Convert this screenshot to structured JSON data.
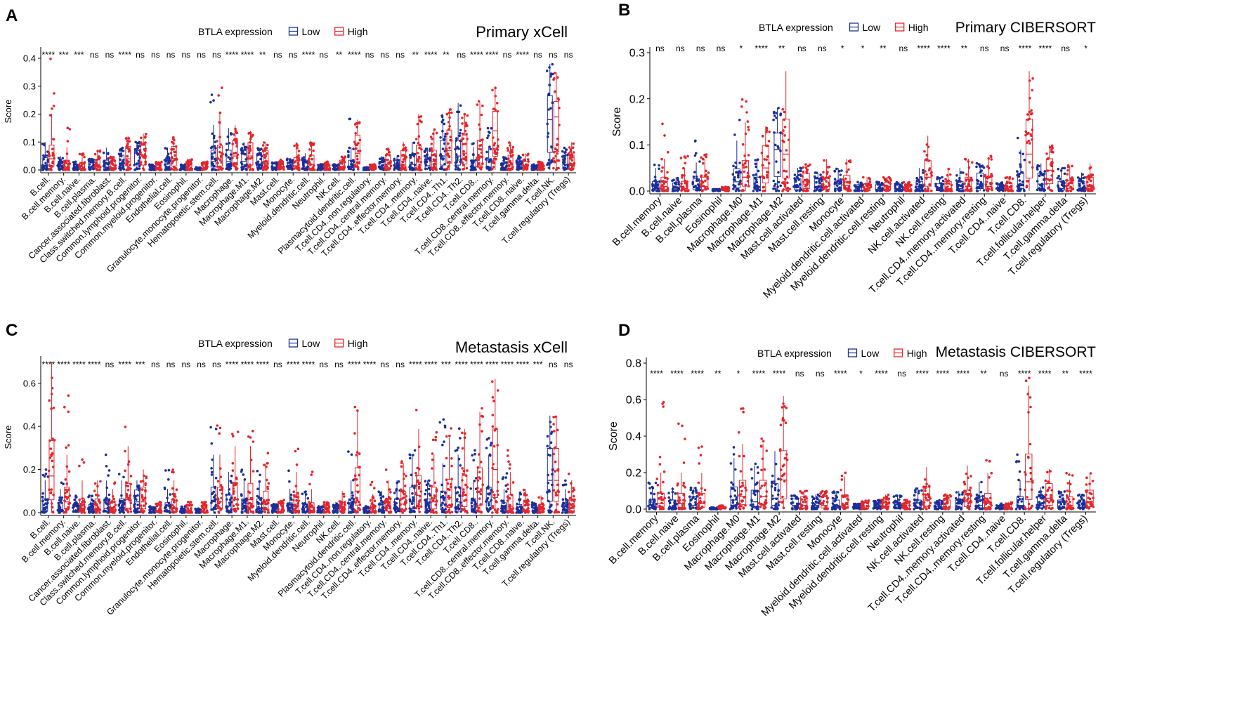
{
  "legend_title": "BTLA expression",
  "groups": [
    {
      "label": "Low",
      "color": "#1a2f9c"
    },
    {
      "label": "High",
      "color": "#e3262c"
    }
  ],
  "chart_data": [
    {
      "panel": "A",
      "type": "box",
      "title": "Primary xCell",
      "ylabel": "Score",
      "ylim": [
        0,
        0.42
      ],
      "yticks": [
        "0.0",
        "0.1",
        "0.2",
        "0.3",
        "0.4"
      ],
      "categories": [
        "B.cell.",
        "B.cell.memory.",
        "B.cell.naive.",
        "B.cell.plasma.",
        "Cancer.associated.fibroblast.",
        "Class.switched.memory.B.cell.",
        "Common.lymphoid.progenitor.",
        "Common.myeloid.progenitor.",
        "Endothelial.cell.",
        "Eosinophil.",
        "Granulocyte.monocyte.progenitor.",
        "Hematopoietic.stem.cell.",
        "Macrophage.",
        "Macrophage.M1.",
        "Macrophage.M2.",
        "Mast.cell.",
        "Monocyte.",
        "Myeloid.dendritic.cell.",
        "Neutrophil.",
        "NK.cell.",
        "Plasmacytoid.dendritic.cell.",
        "T.cell.CD4..non.regulatory.",
        "T.cell.CD4..central.memory.",
        "T.cell.CD4..effector.memory.",
        "T.cell.CD4..memory.",
        "T.cell.CD4..naive.",
        "T.cell.CD4..Th1.",
        "T.cell.CD4..Th2.",
        "T.cell.CD8..",
        "T.cell.CD8..central.memory.",
        "T.cell.CD8..effector.memory.",
        "T.cell.CD8..naive.",
        "T.cell.gamma.delta.",
        "T.cell.NK.",
        "T.cell.regulatory (Tregs)"
      ],
      "significance": [
        "****",
        "***",
        "***",
        "ns",
        "ns",
        "****",
        "ns",
        "ns",
        "ns",
        "ns",
        "ns",
        "ns",
        "****",
        "****",
        "**",
        "ns",
        "ns",
        "****",
        "ns",
        "**",
        "****",
        "ns",
        "ns",
        "ns",
        "**",
        "****",
        "**",
        "ns",
        "****",
        "****",
        "ns",
        "****",
        "ns",
        "ns",
        "ns"
      ],
      "series": [
        {
          "name": "Low",
          "medians": [
            0.015,
            0.005,
            0.003,
            0.006,
            0.01,
            0.02,
            0.06,
            0.004,
            0.01,
            0.002,
            0.002,
            0.03,
            0.03,
            0.03,
            0.02,
            0.005,
            0.005,
            0.01,
            0.004,
            0.005,
            0.01,
            0.002,
            0.008,
            0.01,
            0.02,
            0.015,
            0.05,
            0.05,
            0.01,
            0.01,
            0.005,
            0.005,
            0.002,
            0.18,
            0.02
          ],
          "maxes": [
            0.1,
            0.05,
            0.03,
            0.04,
            0.08,
            0.08,
            0.1,
            0.02,
            0.08,
            0.02,
            0.01,
            0.27,
            0.15,
            0.1,
            0.08,
            0.03,
            0.04,
            0.06,
            0.02,
            0.02,
            0.2,
            0.01,
            0.05,
            0.05,
            0.1,
            0.08,
            0.2,
            0.24,
            0.1,
            0.15,
            0.05,
            0.05,
            0.02,
            0.38,
            0.08
          ]
        },
        {
          "name": "High",
          "medians": [
            0.04,
            0.01,
            0.005,
            0.012,
            0.008,
            0.04,
            0.05,
            0.005,
            0.04,
            0.003,
            0.003,
            0.04,
            0.05,
            0.05,
            0.03,
            0.008,
            0.015,
            0.02,
            0.006,
            0.01,
            0.06,
            0.004,
            0.02,
            0.03,
            0.04,
            0.03,
            0.07,
            0.06,
            0.05,
            0.14,
            0.02,
            0.008,
            0.003,
            0.19,
            0.02
          ],
          "maxes": [
            0.41,
            0.16,
            0.06,
            0.07,
            0.05,
            0.12,
            0.13,
            0.03,
            0.12,
            0.04,
            0.03,
            0.3,
            0.16,
            0.14,
            0.1,
            0.04,
            0.1,
            0.1,
            0.03,
            0.05,
            0.18,
            0.02,
            0.08,
            0.1,
            0.2,
            0.15,
            0.22,
            0.2,
            0.25,
            0.3,
            0.1,
            0.06,
            0.03,
            0.35,
            0.1
          ]
        }
      ]
    },
    {
      "panel": "B",
      "type": "box",
      "title": "Primary CIBERSORT",
      "ylabel": "Score",
      "ylim": [
        0,
        0.3
      ],
      "yticks": [
        "0.0",
        "0.1",
        "0.2",
        "0.3"
      ],
      "categories": [
        "B.cell.memory",
        "B.cell.naive",
        "B.cell.plasma",
        "Eosinophil",
        "Macrophage.M0",
        "Macrophage.M1",
        "Macrophage.M2",
        "Mast.cell.activated",
        "Mast.cell.resting",
        "Monocyte",
        "Myeloid.dendritic.cell.activated",
        "Myeloid.dendritic.cell.resting",
        "Neutrophil",
        "NK.cell.activated",
        "NK.cell.resting",
        "T.cell.CD4..memory.activated",
        "T.cell.CD4..memory.resting",
        "T.cell.CD4..naive",
        "T.cell.CD8.",
        "T.cell.follicular.helper",
        "T.cell.gamma.delta",
        "T.cell.regulatory (Tregs)"
      ],
      "significance": [
        "ns",
        "ns",
        "ns",
        "ns",
        "*",
        "****",
        "**",
        "ns",
        "ns",
        "*",
        "*",
        "**",
        "ns",
        "****",
        "****",
        "**",
        "ns",
        "ns",
        "****",
        "****",
        "ns",
        "*"
      ],
      "series": [
        {
          "name": "Low",
          "medians": [
            0.005,
            0.003,
            0.008,
            0.001,
            0.02,
            0.01,
            0.09,
            0.008,
            0.008,
            0.006,
            0.001,
            0.002,
            0.003,
            0.005,
            0.002,
            0.005,
            0.015,
            0.002,
            0.015,
            0.015,
            0.005,
            0.005
          ],
          "maxes": [
            0.06,
            0.03,
            0.12,
            0.005,
            0.16,
            0.08,
            0.18,
            0.05,
            0.04,
            0.05,
            0.02,
            0.02,
            0.02,
            0.05,
            0.03,
            0.05,
            0.06,
            0.02,
            0.12,
            0.06,
            0.05,
            0.04
          ]
        },
        {
          "name": "High",
          "medians": [
            0.01,
            0.005,
            0.01,
            0.002,
            0.03,
            0.05,
            0.08,
            0.015,
            0.01,
            0.012,
            0.002,
            0.004,
            0.003,
            0.03,
            0.005,
            0.01,
            0.01,
            0.003,
            0.08,
            0.045,
            0.006,
            0.01
          ],
          "maxes": [
            0.17,
            0.08,
            0.08,
            0.01,
            0.21,
            0.14,
            0.26,
            0.06,
            0.07,
            0.07,
            0.03,
            0.03,
            0.02,
            0.12,
            0.05,
            0.07,
            0.08,
            0.03,
            0.26,
            0.1,
            0.06,
            0.06
          ]
        }
      ]
    },
    {
      "panel": "C",
      "type": "box",
      "title": "Metastasis xCell",
      "ylabel": "Score",
      "ylim": [
        0,
        0.7
      ],
      "yticks": [
        "0.0",
        "0.2",
        "0.4",
        "0.6"
      ],
      "categories": [
        "B.cell.",
        "B.cell.memory.",
        "B.cell.naive.",
        "B.cell.plasma.",
        "Cancer.associated.fibroblast.",
        "Class.switched.memory.B.cell.",
        "Common.lymphoid.progenitor.",
        "Common.myeloid.progenitor.",
        "Endothelial.cell.",
        "Eosinophil.",
        "Granulocyte.monocyte.progenitor.",
        "Hematopoietic.stem.cell.",
        "Macrophage.",
        "Macrophage.M1.",
        "Macrophage.M2.",
        "Mast.cell.",
        "Monocyte.",
        "Myeloid.dendritic.cell.",
        "Neutrophil.",
        "NK.cell.",
        "Plasmacytoid.dendritic.cell.",
        "T.cell.CD4..non.regulatory.",
        "T.cell.CD4..central.memory.",
        "T.cell.CD4..effector.memory.",
        "T.cell.CD4..memory.",
        "T.cell.CD4..naive.",
        "T.cell.CD4..Th1.",
        "T.cell.CD4..Th2.",
        "T.cell.CD8..",
        "T.cell.CD8..central.memory.",
        "T.cell.CD8..effector.memory.",
        "T.cell.CD8..naive.",
        "T.cell.gamma.delta.",
        "T.cell.NK.",
        "T.cell.regulatory (Tregs)"
      ],
      "significance": [
        "****",
        "****",
        "****",
        "****",
        "ns",
        "****",
        "***",
        "ns",
        "ns",
        "ns",
        "ns",
        "ns",
        "****",
        "****",
        "****",
        "ns",
        "****",
        "****",
        "ns",
        "ns",
        "****",
        "****",
        "ns",
        "ns",
        "****",
        "****",
        "***",
        "****",
        "****",
        "****",
        "****",
        "****",
        "***",
        "ns",
        "ns"
      ],
      "series": [
        {
          "name": "Low",
          "medians": [
            0.02,
            0.01,
            0.005,
            0.005,
            0.02,
            0.02,
            0.05,
            0.002,
            0.01,
            0.002,
            0.002,
            0.05,
            0.03,
            0.02,
            0.02,
            0.005,
            0.01,
            0.005,
            0.002,
            0.003,
            0.02,
            0.002,
            0.01,
            0.02,
            0.05,
            0.02,
            0.04,
            0.05,
            0.02,
            0.05,
            0.01,
            0.005,
            0.003,
            0.15,
            0.01
          ],
          "maxes": [
            0.2,
            0.15,
            0.08,
            0.08,
            0.27,
            0.2,
            0.15,
            0.03,
            0.2,
            0.03,
            0.02,
            0.4,
            0.2,
            0.2,
            0.2,
            0.04,
            0.2,
            0.1,
            0.03,
            0.05,
            0.3,
            0.03,
            0.1,
            0.15,
            0.3,
            0.15,
            0.45,
            0.4,
            0.3,
            0.35,
            0.2,
            0.1,
            0.05,
            0.45,
            0.15
          ]
        },
        {
          "name": "High",
          "medians": [
            0.17,
            0.05,
            0.02,
            0.02,
            0.01,
            0.06,
            0.05,
            0.004,
            0.02,
            0.003,
            0.003,
            0.05,
            0.06,
            0.06,
            0.04,
            0.008,
            0.03,
            0.01,
            0.004,
            0.01,
            0.1,
            0.004,
            0.02,
            0.04,
            0.08,
            0.05,
            0.07,
            0.08,
            0.1,
            0.2,
            0.03,
            0.01,
            0.005,
            0.15,
            0.02
          ],
          "maxes": [
            0.7,
            0.56,
            0.26,
            0.15,
            0.15,
            0.4,
            0.2,
            0.05,
            0.22,
            0.05,
            0.05,
            0.44,
            0.4,
            0.4,
            0.3,
            0.06,
            0.3,
            0.2,
            0.05,
            0.1,
            0.53,
            0.15,
            0.2,
            0.25,
            0.52,
            0.38,
            0.4,
            0.4,
            0.5,
            0.62,
            0.3,
            0.12,
            0.08,
            0.45,
            0.2
          ]
        }
      ]
    },
    {
      "panel": "D",
      "type": "box",
      "title": "Metastasis CIBERSORT",
      "ylabel": "Score",
      "ylim": [
        0,
        0.8
      ],
      "yticks": [
        "0.0",
        "0.2",
        "0.4",
        "0.6",
        "0.8"
      ],
      "categories": [
        "B.cell.memory",
        "B.cell.naive",
        "B.cell.plasma",
        "Eosinophil",
        "Macrophage.M0",
        "Macrophage.M1",
        "Macrophage.M2",
        "Mast.cell.activated",
        "Mast.cell.resting",
        "Monocyte",
        "Myeloid.dendritic.cell.activated",
        "Myeloid.dendritic.cell.resting",
        "Neutrophil",
        "NK.cell.activated",
        "NK.cell.resting",
        "T.cell.CD4..memory.activated",
        "T.cell.CD4..memory.resting",
        "T.cell.CD4..naive",
        "T.cell.CD8.",
        "T.cell.follicular.helper",
        "T.cell.gamma.delta",
        "T.cell.regulatory (Tregs)"
      ],
      "significance": [
        "****",
        "****",
        "****",
        "**",
        "*",
        "****",
        "****",
        "ns",
        "ns",
        "****",
        "*",
        "****",
        "ns",
        "****",
        "****",
        "****",
        "**",
        "ns",
        "****",
        "****",
        "**",
        "****"
      ],
      "series": [
        {
          "name": "Low",
          "medians": [
            0.01,
            0.01,
            0.02,
            0.002,
            0.05,
            0.04,
            0.06,
            0.02,
            0.02,
            0.01,
            0.002,
            0.005,
            0.003,
            0.01,
            0.005,
            0.01,
            0.02,
            0.003,
            0.02,
            0.02,
            0.01,
            0.01
          ],
          "maxes": [
            0.15,
            0.12,
            0.12,
            0.01,
            0.35,
            0.25,
            0.4,
            0.08,
            0.08,
            0.1,
            0.03,
            0.05,
            0.08,
            0.12,
            0.05,
            0.1,
            0.15,
            0.03,
            0.3,
            0.12,
            0.1,
            0.08
          ]
        },
        {
          "name": "High",
          "medians": [
            0.03,
            0.03,
            0.03,
            0.003,
            0.07,
            0.07,
            0.16,
            0.02,
            0.02,
            0.025,
            0.003,
            0.01,
            0.003,
            0.05,
            0.01,
            0.04,
            0.03,
            0.004,
            0.15,
            0.06,
            0.02,
            0.04
          ],
          "maxes": [
            0.61,
            0.48,
            0.36,
            0.02,
            0.59,
            0.4,
            0.62,
            0.1,
            0.1,
            0.2,
            0.05,
            0.08,
            0.05,
            0.23,
            0.08,
            0.25,
            0.32,
            0.04,
            0.73,
            0.22,
            0.2,
            0.2
          ]
        }
      ]
    }
  ]
}
